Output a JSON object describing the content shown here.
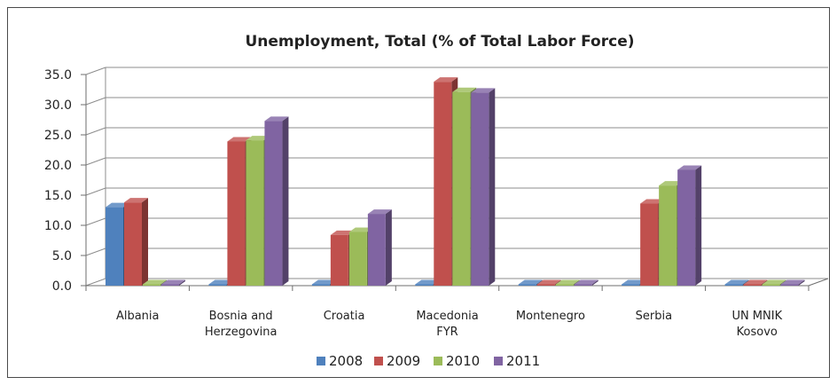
{
  "chart_data": {
    "type": "bar",
    "title": "Unemployment, Total (% of Total Labor Force)",
    "categories": [
      [
        "Albania"
      ],
      [
        "Bosnia and",
        "Herzegovina"
      ],
      [
        "Croatia"
      ],
      [
        "Macedonia",
        "FYR"
      ],
      [
        "Montenegro"
      ],
      [
        "Serbia"
      ],
      [
        "UN MNIK",
        "Kosovo"
      ]
    ],
    "series": [
      {
        "name": "2008",
        "color": "#4f81bd",
        "values": [
          13.0,
          0,
          0,
          0,
          0,
          0,
          0
        ]
      },
      {
        "name": "2009",
        "color": "#c0504d",
        "values": [
          13.8,
          23.9,
          8.4,
          33.8,
          0,
          13.6,
          0
        ]
      },
      {
        "name": "2010",
        "color": "#9bbb59",
        "values": [
          0,
          24.1,
          8.9,
          32.1,
          0,
          16.6,
          0
        ]
      },
      {
        "name": "2011",
        "color": "#8064a2",
        "values": [
          0,
          27.3,
          11.9,
          32.0,
          0,
          19.2,
          0
        ]
      }
    ],
    "ylim": [
      0,
      35
    ],
    "yticks": [
      "0.0",
      "5.0",
      "10.0",
      "15.0",
      "20.0",
      "25.0",
      "30.0",
      "35.0"
    ],
    "grid": true,
    "legend_position": "bottom"
  }
}
